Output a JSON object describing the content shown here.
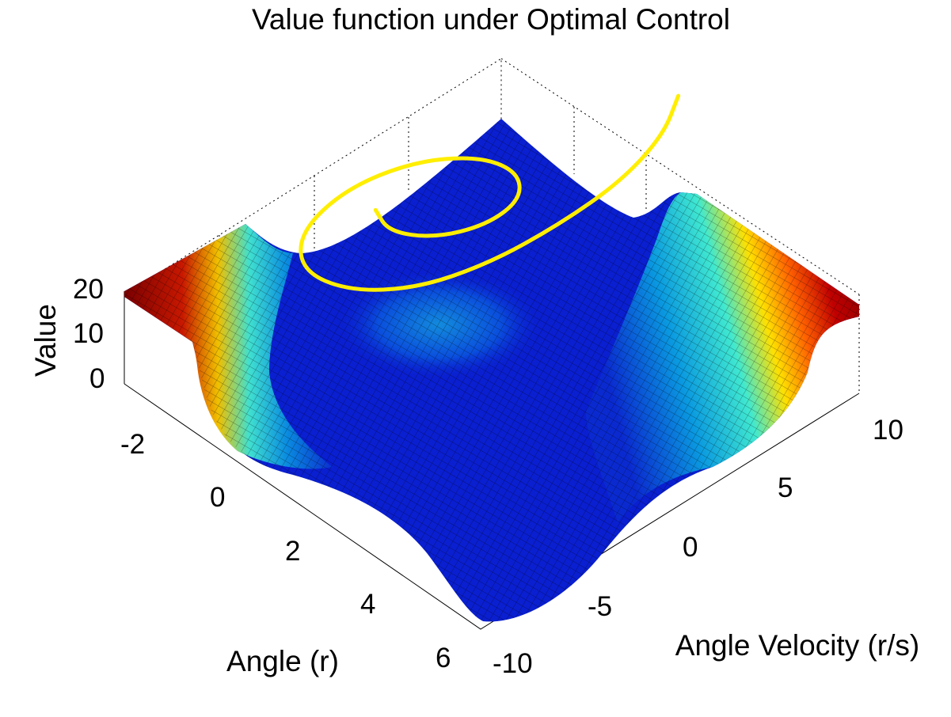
{
  "chart_data": {
    "type": "surface",
    "title": "Value function under Optimal Control",
    "xlabel": "Angle (r)",
    "ylabel": "Angle Velocity (r/s)",
    "zlabel": "Value",
    "x_ticks": [
      "-2",
      "0",
      "2",
      "4",
      "6"
    ],
    "y_ticks": [
      "-10",
      "-5",
      "0",
      "5",
      "10"
    ],
    "z_ticks": [
      "0",
      "10",
      "20"
    ],
    "xlim": [
      -3.14,
      6.28
    ],
    "ylim": [
      -10,
      10
    ],
    "zlim": [
      0,
      20
    ],
    "grid": true,
    "colormap": "jet",
    "surface_color": "#0a1fd0",
    "trajectory_color": "#ffee00",
    "trajectory": {
      "description_shown": "spiral trajectory overlay",
      "points": [
        [
          2.0,
          9.0
        ],
        [
          2.6,
          7.0
        ],
        [
          3.0,
          4.0
        ],
        [
          3.1,
          0.5
        ],
        [
          3.0,
          -3.0
        ],
        [
          2.6,
          -6.0
        ],
        [
          1.8,
          -8.0
        ],
        [
          0.8,
          -8.5
        ],
        [
          0.0,
          -7.0
        ],
        [
          -0.3,
          -4.0
        ],
        [
          0.0,
          -1.0
        ],
        [
          0.7,
          1.0
        ],
        [
          1.5,
          1.5
        ],
        [
          2.1,
          0.5
        ],
        [
          2.2,
          -1.5
        ],
        [
          1.8,
          -3.5
        ],
        [
          1.1,
          -4.5
        ],
        [
          0.5,
          -4.0
        ]
      ]
    }
  }
}
